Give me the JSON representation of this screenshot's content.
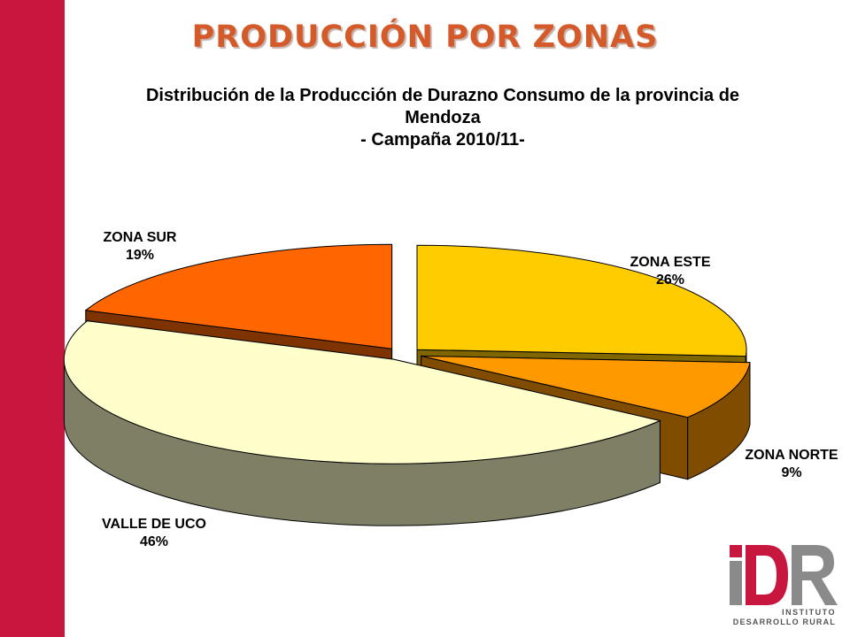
{
  "slide": {
    "title": "PRODUCCIÓN POR ZONAS",
    "accent_color": "#c8173f",
    "title_color": "#d55a2a"
  },
  "chart_data": {
    "type": "pie",
    "style": "3d-exploded",
    "title_lines": [
      "Distribución de la Producción de Durazno Consumo de la provincia de",
      "Mendoza",
      "- Campaña 2010/11-"
    ],
    "slices": [
      {
        "label": "ZONA ESTE",
        "pct_text": "26%",
        "value": 26,
        "top_color": "#ffcc00",
        "side_color": "#7f6600"
      },
      {
        "label": "ZONA NORTE",
        "pct_text": "9%",
        "value": 9,
        "top_color": "#ff9900",
        "side_color": "#7f4c00"
      },
      {
        "label": "VALLE DE UCO",
        "pct_text": "46%",
        "value": 46,
        "top_color": "#ffffcc",
        "side_color": "#7f7f66"
      },
      {
        "label": "ZONA SUR",
        "pct_text": "19%",
        "value": 19,
        "top_color": "#ff6600",
        "side_color": "#7f3300"
      }
    ]
  },
  "logo": {
    "mark": "IDR",
    "line1": "INSTITUTO",
    "line2": "DESARROLLO RURAL"
  }
}
